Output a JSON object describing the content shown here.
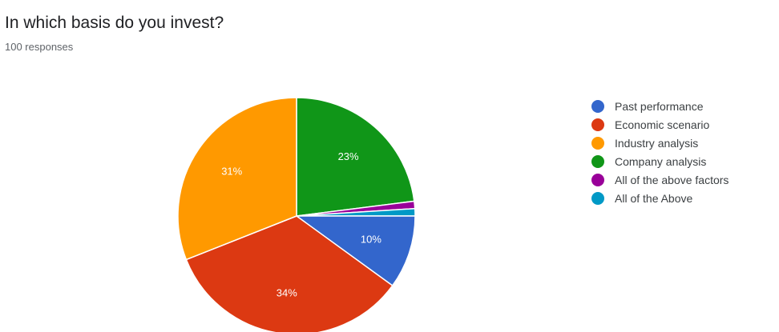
{
  "title": "In which basis do you invest?",
  "subtitle": "100 responses",
  "chart_data": {
    "type": "pie",
    "title": "In which basis do you invest?",
    "subtitle": "100 responses",
    "legend_position": "right",
    "slices": [
      {
        "label": "Past performance",
        "value": 10,
        "display": "10%",
        "color": "#3366cc"
      },
      {
        "label": "Economic scenario",
        "value": 34,
        "display": "34%",
        "color": "#dc3912"
      },
      {
        "label": "Industry analysis",
        "value": 31,
        "display": "31%",
        "color": "#ff9900"
      },
      {
        "label": "Company analysis",
        "value": 23,
        "display": "23%",
        "color": "#109618"
      },
      {
        "label": "All of the above factors",
        "value": 1,
        "display": "",
        "color": "#990099"
      },
      {
        "label": "All of the Above",
        "value": 1,
        "display": "",
        "color": "#0099c6"
      }
    ]
  }
}
